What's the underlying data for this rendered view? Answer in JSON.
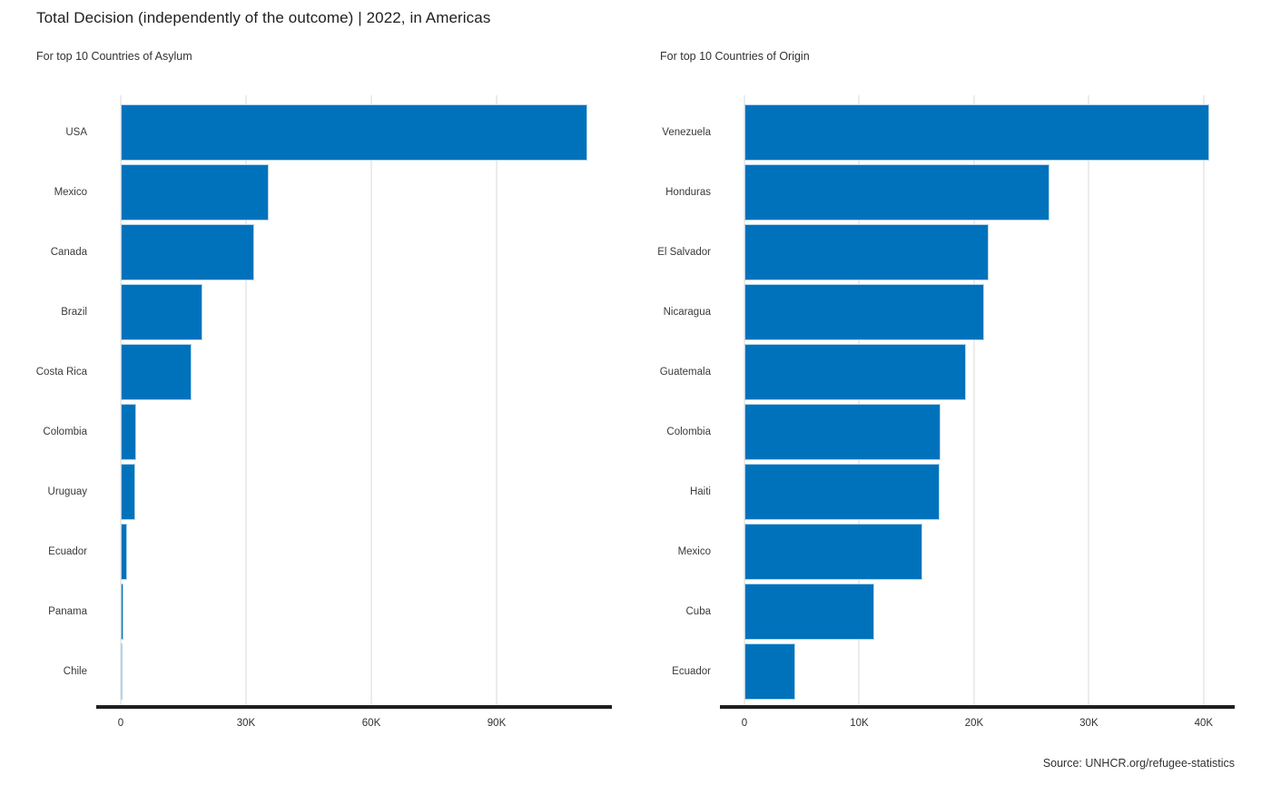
{
  "title": "Total Decision (independently of the outcome) | 2022, in Americas",
  "source": "Source: UNHCR.org/refugee-statistics",
  "colors": {
    "bar": "#0072bc",
    "bar_stroke": "#b3d4ea",
    "gridline": "#d8d8d8",
    "axis_line": "#1f1f1f",
    "text": "#303030"
  },
  "chart_data": [
    {
      "type": "bar",
      "orientation": "horizontal",
      "title": "For top 10 Countries of Asylum",
      "categories": [
        "USA",
        "Mexico",
        "Canada",
        "Brazil",
        "Costa Rica",
        "Colombia",
        "Uruguay",
        "Ecuador",
        "Panama",
        "Chile"
      ],
      "values": [
        111700,
        35400,
        31900,
        19600,
        16900,
        3600,
        3400,
        1600,
        700,
        500
      ],
      "xlim": [
        0,
        117600
      ],
      "xticks": [
        0,
        30000,
        60000,
        90000
      ],
      "xtick_labels": [
        "0",
        "30K",
        "60K",
        "90K"
      ],
      "grid": true,
      "legend": "none",
      "xlabel": "",
      "ylabel": ""
    },
    {
      "type": "bar",
      "orientation": "horizontal",
      "title": "For top 10 Countries of Origin",
      "categories": [
        "Venezuela",
        "Honduras",
        "El Salvador",
        "Nicaragua",
        "Guatemala",
        "Colombia",
        "Haiti",
        "Mexico",
        "Cuba",
        "Ecuador"
      ],
      "values": [
        40500,
        26600,
        21300,
        20900,
        19300,
        17100,
        17000,
        15500,
        11300,
        4400
      ],
      "xlim": [
        0,
        42700
      ],
      "xticks": [
        0,
        10000,
        20000,
        30000,
        40000
      ],
      "xtick_labels": [
        "0",
        "10K",
        "20K",
        "30K",
        "40K"
      ],
      "grid": true,
      "legend": "none",
      "xlabel": "",
      "ylabel": ""
    }
  ]
}
